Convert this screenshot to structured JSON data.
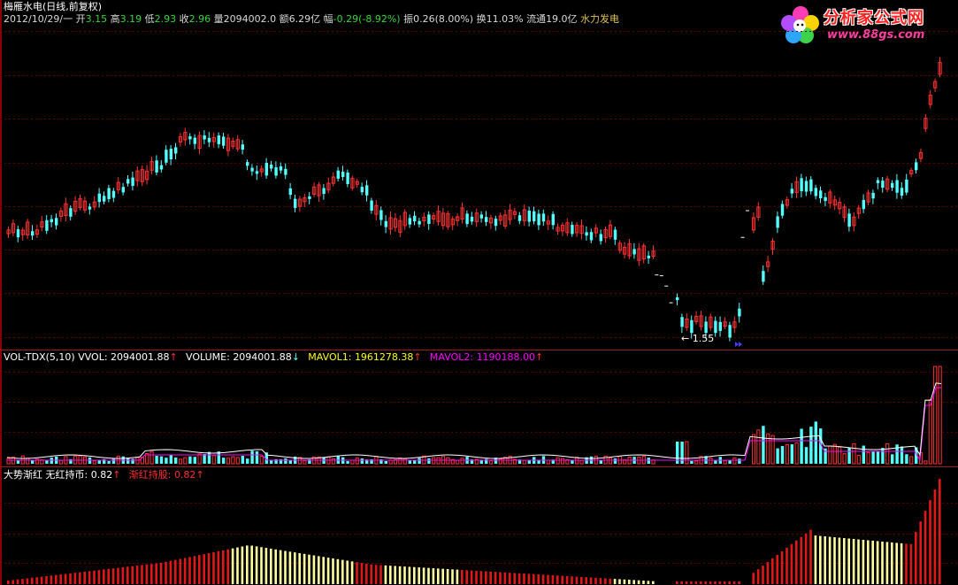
{
  "title": "梅雁水电(日线,前复权)",
  "info": {
    "date": "2012/10/29/一",
    "open_label": "开",
    "open": "3.15",
    "high_label": "高",
    "high": "3.19",
    "low_label": "低",
    "low": "2.93",
    "close_label": "收",
    "close": "2.96",
    "volume_label": "量",
    "volume": "2094002.0",
    "amount_label": "额",
    "amount": "6.29亿",
    "change_label": "幅",
    "change": "-0.29(-8.92%)",
    "amplitude_label": "振",
    "amplitude": "0.26(8.00%)",
    "turnover_label": "换",
    "turnover": "11.03%",
    "float_label": "流通",
    "float": "19.0亿",
    "sector": "水力发电"
  },
  "logo": {
    "text": "分析家公式网",
    "url": "www.88gs.com"
  },
  "volume_panel": {
    "name": "VOL-TDX(5,10)",
    "vvol_label": "VVOL:",
    "vvol": "2094001.88",
    "volume_label": "VOLUME:",
    "volume": "2094001.88",
    "mavol1_label": "MAVOL1:",
    "mavol1": "1961278.38",
    "mavol2_label": "MAVOL2:",
    "mavol2": "1190188.00"
  },
  "indicator_panel": {
    "name": "大势渐红",
    "line1_label": "无红持币:",
    "line1": "0.82",
    "line2_label": "渐红持股:",
    "line2": "0.82"
  },
  "annotations": {
    "low_marker": "1.55"
  },
  "colors": {
    "up": "#ff3232",
    "down": "#54ffff",
    "ma1": "#ffffff",
    "ma2": "#ff00ff",
    "pale": "#ffffa0",
    "grid": "#8a0000"
  }
}
